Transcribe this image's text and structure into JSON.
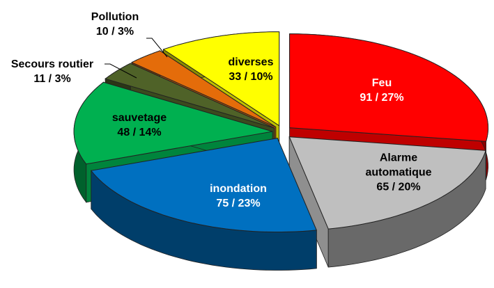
{
  "chart_data": {
    "type": "pie",
    "categories": [
      "Feu",
      "Alarme automatique",
      "inondation",
      "sauvetage",
      "Secours routier",
      "Pollution",
      "diverses"
    ],
    "values": [
      91,
      65,
      75,
      48,
      11,
      10,
      33
    ],
    "value_labels": [
      "91 / 27%",
      "65 / 20%",
      "75 / 23%",
      "48 / 14%",
      "11 / 3%",
      "10 / 3%",
      "33 / 10%"
    ],
    "colors": [
      "#ff0000",
      "#bfbfbf",
      "#0070c0",
      "#00b050",
      "#4f6228",
      "#e46c0a",
      "#ffff00"
    ]
  }
}
